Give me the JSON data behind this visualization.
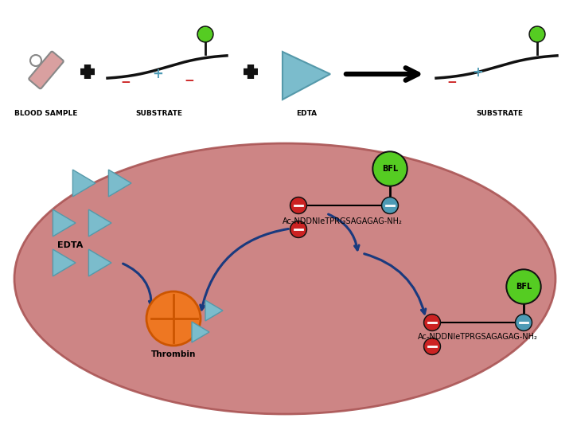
{
  "bg_color": "#ffffff",
  "ellipse_color": "#c87878",
  "tube_color": "#d9a0a0",
  "substrate_curve_color": "#111111",
  "plus_color": "#111111",
  "cyan_plus_color": "#4d9ab5",
  "minus_color": "#cc2222",
  "green_circle_color": "#55cc22",
  "black_outline": "#111111",
  "triangle_color": "#7bbccc",
  "bfl_color": "#55cc22",
  "bfl_text": "BFL",
  "substrate_label": "SUBSTRATE",
  "blood_label": "BLOOD SAMPLE",
  "edta_label": "EDTA",
  "thrombin_color": "#ee7722",
  "thrombin_label": "Thrombin",
  "edta_label2": "EDTA",
  "peptide_label": "Ac-NDDNIeTPRGSAGAGAG-NH₂",
  "peptide_label2": "Ac-NDDNIeTPRGSAGAGAG-NH₂",
  "dark_blue_arrow": "#1a3a7e",
  "node_red": "#cc2222",
  "node_blue": "#4d9ab5"
}
